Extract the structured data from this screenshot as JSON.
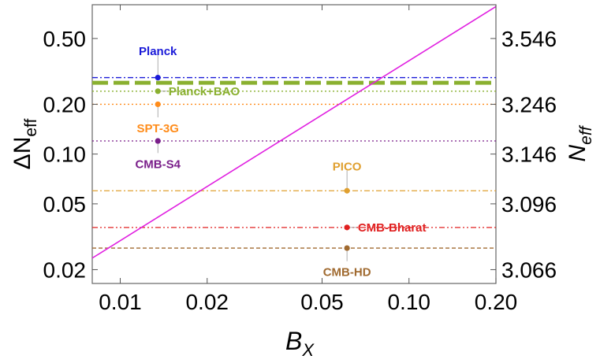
{
  "chart_data": {
    "type": "line",
    "xlabel_main": "B",
    "xlabel_sub": "X",
    "ylabel_left_main": "ΔN",
    "ylabel_left_sub": "eff",
    "ylabel_right_main": "N",
    "ylabel_right_sub": "eff",
    "x_scale": "log",
    "y_scale": "log",
    "xlim": [
      0.008,
      0.2
    ],
    "ylim": [
      0.0165,
      0.8
    ],
    "x_ticks": [
      {
        "value": 0.01,
        "label": "0.01"
      },
      {
        "value": 0.02,
        "label": "0.02"
      },
      {
        "value": 0.05,
        "label": "0.05"
      },
      {
        "value": 0.1,
        "label": "0.10"
      },
      {
        "value": 0.2,
        "label": "0.20"
      }
    ],
    "y_ticks_left": [
      {
        "value": 0.02,
        "label": "0.02"
      },
      {
        "value": 0.05,
        "label": "0.05"
      },
      {
        "value": 0.1,
        "label": "0.10"
      },
      {
        "value": 0.2,
        "label": "0.20"
      },
      {
        "value": 0.5,
        "label": "0.50"
      }
    ],
    "y_ticks_right": [
      {
        "value": 0.02,
        "label": "3.066"
      },
      {
        "value": 0.05,
        "label": "3.096"
      },
      {
        "value": 0.1,
        "label": "3.146"
      },
      {
        "value": 0.2,
        "label": "3.246"
      },
      {
        "value": 0.5,
        "label": "3.546"
      }
    ],
    "curve": {
      "color": "#e020e0",
      "points": [
        [
          0.008,
          0.0235
        ],
        [
          0.2,
          0.78
        ]
      ]
    },
    "limits": [
      {
        "name": "Planck",
        "value": 0.29,
        "color": "#1a1ad8",
        "style": "dashdot",
        "marker_x": 0.0135,
        "label_x": 0.0135,
        "label_y": 0.42,
        "label_anchor": "middle"
      },
      {
        "name": "Planck+BAO",
        "value": 0.24,
        "color": "#8ab030",
        "style": "dot",
        "marker_x": 0.0135,
        "label_x": 0.0147,
        "label_y": 0.24,
        "label_anchor": "start"
      },
      {
        "name": "SPT-3G",
        "value": 0.2,
        "color": "#ff8c1a",
        "style": "dot",
        "marker_x": 0.0135,
        "label_x": 0.0135,
        "label_y": 0.143,
        "label_anchor": "middle"
      },
      {
        "name": "CMB-S4",
        "value": 0.12,
        "color": "#7a1f8a",
        "style": "dot",
        "marker_x": 0.0135,
        "label_x": 0.0135,
        "label_y": 0.087,
        "label_anchor": "middle"
      },
      {
        "name": "PICO",
        "value": 0.06,
        "color": "#e0a030",
        "style": "dashdot",
        "marker_x": 0.061,
        "label_x": 0.061,
        "label_y": 0.084,
        "label_anchor": "middle"
      },
      {
        "name": "CMB-Bharat",
        "value": 0.036,
        "color": "#e02020",
        "style": "dashdotdot",
        "marker_x": 0.061,
        "label_x": 0.0665,
        "label_y": 0.036,
        "label_anchor": "start"
      },
      {
        "name": "CMB-HD",
        "value": 0.027,
        "color": "#a06a30",
        "style": "dash",
        "marker_x": 0.061,
        "label_x": 0.061,
        "label_y": 0.0193,
        "label_anchor": "middle"
      }
    ],
    "planck_bao_band": {
      "value": 0.27,
      "color": "#8ab030"
    }
  }
}
